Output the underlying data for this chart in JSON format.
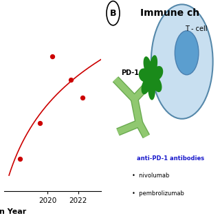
{
  "scatter_x": [
    2018.2,
    2019.5,
    2020.3,
    2021.5,
    2022.3
  ],
  "scatter_y": [
    0.18,
    0.38,
    0.75,
    0.62,
    0.52
  ],
  "dot_color": "#cc0000",
  "line_color": "#cc0000",
  "xlabel": "n Year",
  "xlim": [
    2017.2,
    2023.5
  ],
  "ylim": [
    0.0,
    1.0
  ],
  "xticks": [
    2020,
    2022
  ],
  "background": "#ffffff",
  "tcell_face": "#c8dff0",
  "tcell_edge": "#5588aa",
  "nucleus_face": "#5b9ecf",
  "nucleus_edge": "#4a80b0",
  "pd1_color": "#1a8a1a",
  "antibody_face": "#90c870",
  "antibody_edge": "#6aaa50",
  "antibody_text_color": "#1a1acc",
  "bullet_text": [
    "nivolumab",
    "pembrolizumab"
  ]
}
